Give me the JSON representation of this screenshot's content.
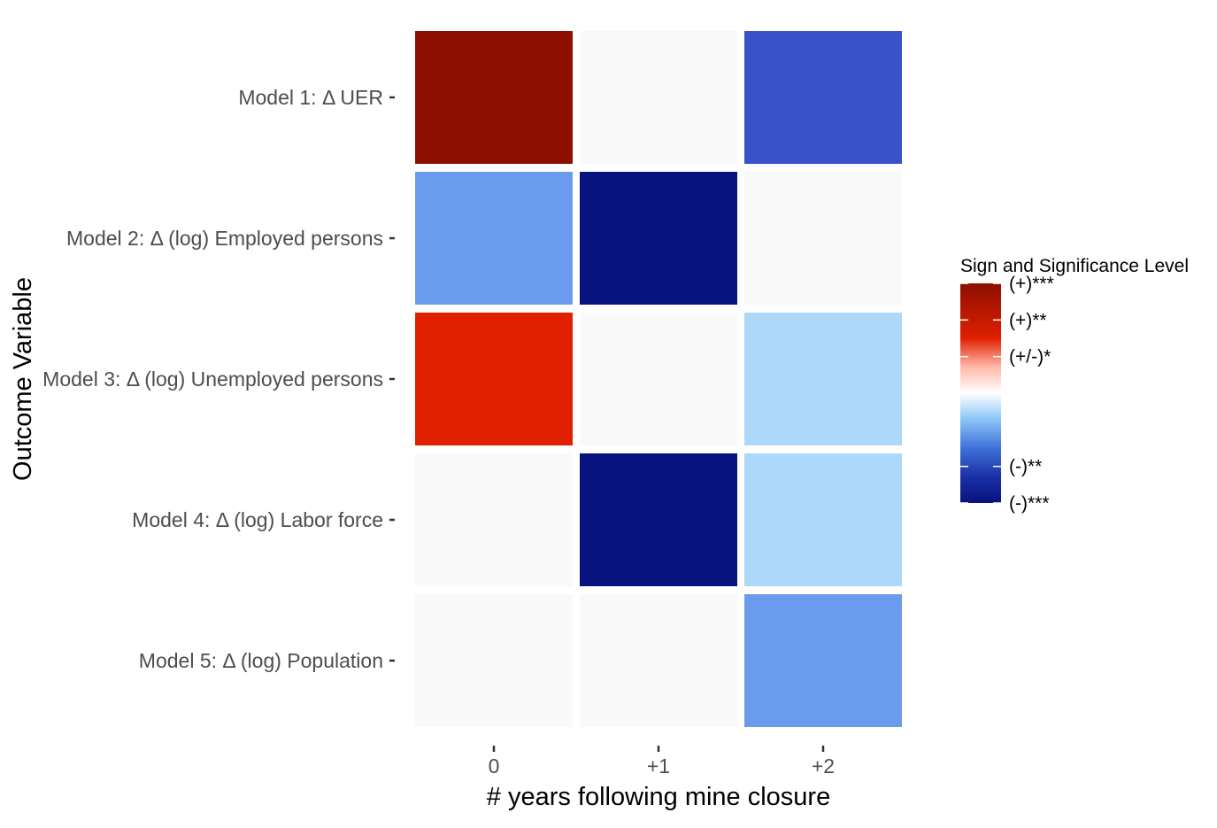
{
  "chart_data": {
    "type": "heatmap",
    "xlabel": "# years following mine closure",
    "ylabel": "Outcome Variable",
    "x_categories": [
      "0",
      "+1",
      "+2"
    ],
    "y_categories": [
      "Model 1: Δ UER",
      "Model 2: Δ (log) Employed persons",
      "Model 3: Δ (log) Unemployed persons",
      "Model 4: Δ (log) Labor force",
      "Model 5: Δ (log) Population"
    ],
    "values": [
      [
        3,
        0,
        -2
      ],
      [
        -2,
        -3,
        0
      ],
      [
        2,
        0,
        -1
      ],
      [
        0,
        -3,
        -1
      ],
      [
        0,
        0,
        -2
      ]
    ],
    "legend": {
      "title": "Sign and Significance Level",
      "position": "right",
      "levels": [
        3,
        2,
        1,
        -2,
        -3
      ],
      "labels": [
        "(+)***",
        "(+)**",
        "(+/-)*",
        "(-)**",
        "(-)***"
      ]
    },
    "colors": {
      "3": "#8b1000",
      "2": "#e02000",
      "0": "#f9f9f9",
      "-1": "#add8fa",
      "-2": "#6b9bec",
      "-2b": "#3a52c9",
      "-3": "#07137e"
    },
    "grid": false
  }
}
